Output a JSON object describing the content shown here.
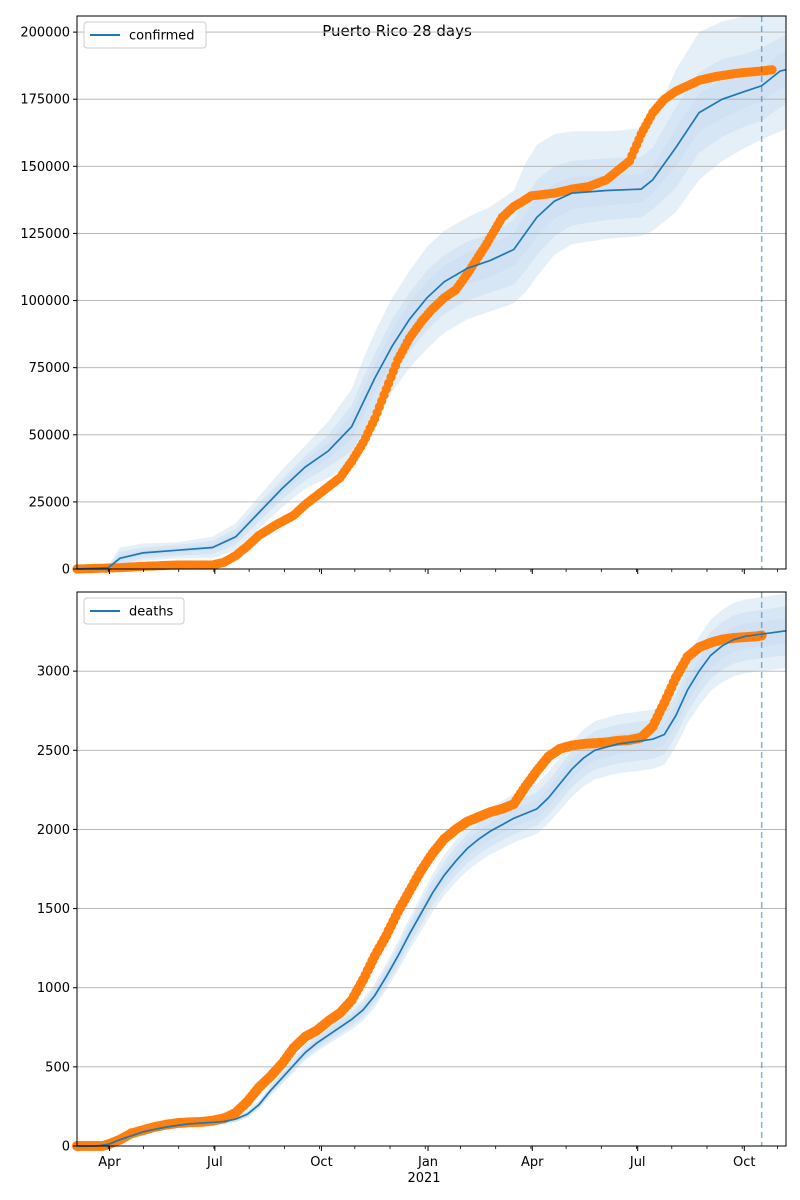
{
  "title": "Puerto Rico 28 days",
  "year_label": "2021",
  "colors": {
    "model": "#1f77b4",
    "observed": "#ff7f0e",
    "band": "#c6dbef",
    "grid": "#b0b0b0",
    "forecast_line": "#1f77b4"
  },
  "x_ticks": [
    {
      "label": "Apr",
      "day": 31
    },
    {
      "label": "Jul",
      "day": 122
    },
    {
      "label": "Oct",
      "day": 214
    },
    {
      "label": "Jan",
      "day": 306
    },
    {
      "label": "Apr",
      "day": 396
    },
    {
      "label": "Jul",
      "day": 487
    },
    {
      "label": "Oct",
      "day": 579
    }
  ],
  "chart_data": [
    {
      "type": "line",
      "name": "confirmed",
      "legend": "confirmed",
      "x_unit": "days since 2020-03-01",
      "xlim": [
        3,
        615
      ],
      "ylim": [
        0,
        206000
      ],
      "yticks": [
        0,
        25000,
        50000,
        75000,
        100000,
        125000,
        150000,
        175000,
        200000
      ],
      "forecast_start_day": 594,
      "model": {
        "x": [
          3,
          30,
          40,
          60,
          90,
          120,
          140,
          160,
          180,
          200,
          220,
          240,
          250,
          260,
          275,
          290,
          305,
          320,
          340,
          360,
          380,
          390,
          400,
          415,
          430,
          460,
          490,
          500,
          520,
          540,
          560,
          580,
          594,
          610,
          615
        ],
        "y": [
          0,
          500,
          4000,
          6000,
          7000,
          8000,
          12000,
          21000,
          30000,
          38000,
          44000,
          53000,
          62000,
          71000,
          83000,
          93000,
          101000,
          107000,
          112000,
          115000,
          119000,
          125000,
          131000,
          137000,
          140000,
          141000,
          141500,
          145000,
          157000,
          170000,
          175000,
          178000,
          180000,
          185500,
          186000
        ],
        "bands": [
          {
            "lower": [
              0,
              0,
              0,
              3000,
              4000,
              4000,
              7000,
              15000,
              23000,
              30000,
              34000,
              39000,
              46000,
              55000,
              66000,
              75000,
              82000,
              88000,
              93000,
              96000,
              99000,
              103000,
              109000,
              117000,
              121000,
              123000,
              124000,
              126000,
              133000,
              145000,
              152000,
              157000,
              160000,
              163000,
              164000
            ],
            "upper": [
              0,
              1500,
              8000,
              9500,
              10000,
              12000,
              17000,
              27000,
              37000,
              46000,
              55000,
              67000,
              78000,
              88000,
              101000,
              111000,
              120000,
              126000,
              131000,
              135000,
              141000,
              151000,
              158000,
              162000,
              163000,
              163000,
              164000,
              167000,
              186000,
              200000,
              204000,
              206000,
              206000,
              206000,
              206000
            ]
          },
          {
            "lower": [
              0,
              100,
              1500,
              4000,
              5000,
              5500,
              9000,
              17500,
              26000,
              33000,
              38000,
              44000,
              51000,
              60000,
              71000,
              81000,
              89000,
              95000,
              100000,
              103000,
              106000,
              111000,
              117000,
              124000,
              128000,
              130000,
              131000,
              134000,
              142000,
              155000,
              161000,
              165000,
              167000,
              172000,
              173000
            ],
            "upper": [
              0,
              1000,
              6500,
              8000,
              9000,
              10500,
              15000,
              24500,
              33500,
              42000,
              50000,
              61000,
              71000,
              80000,
              93000,
              103000,
              111000,
              117000,
              122000,
              125000,
              130000,
              138000,
              145000,
              150000,
              152000,
              153000,
              153500,
              157000,
              172000,
              185000,
              190000,
              192000,
              194000,
              198000,
              199000
            ]
          },
          {
            "lower": [
              0,
              300,
              2800,
              5000,
              6000,
              7000,
              10500,
              19500,
              28000,
              35500,
              41000,
              48500,
              57000,
              66000,
              77000,
              87000,
              95000,
              101000,
              106000,
              109000,
              113000,
              118000,
              124000,
              130500,
              134000,
              135500,
              136500,
              140000,
              150000,
              163000,
              168000,
              172000,
              174000,
              179000,
              179500
            ],
            "upper": [
              0,
              700,
              5200,
              7000,
              8000,
              9000,
              13500,
              22500,
              32000,
              40500,
              47000,
              57500,
              67000,
              76000,
              89000,
              99000,
              107000,
              113000,
              118000,
              121000,
              125000,
              132000,
              138000,
              143500,
              146000,
              146500,
              147000,
              150000,
              164000,
              177000,
              182000,
              184000,
              186000,
              192000,
              192500
            ]
          }
        ]
      },
      "observed": {
        "x": [
          3,
          40,
          60,
          90,
          120,
          130,
          140,
          150,
          160,
          175,
          190,
          200,
          215,
          230,
          240,
          250,
          260,
          270,
          280,
          290,
          300,
          310,
          320,
          330,
          340,
          355,
          370,
          380,
          388,
          395,
          405,
          415,
          430,
          445,
          460,
          480,
          490,
          500,
          510,
          520,
          530,
          540,
          555,
          570,
          580,
          594,
          603
        ],
        "y": [
          0,
          500,
          1000,
          1500,
          1500,
          2500,
          5000,
          8500,
          12500,
          16500,
          20000,
          24000,
          29000,
          34000,
          40000,
          47000,
          56000,
          67000,
          78000,
          86000,
          92000,
          97000,
          101000,
          104000,
          110000,
          120000,
          131000,
          135000,
          137000,
          139000,
          139500,
          140000,
          141500,
          142500,
          145000,
          152000,
          162000,
          170000,
          175000,
          178000,
          180000,
          182000,
          183500,
          184500,
          185000,
          185500,
          186000
        ]
      }
    },
    {
      "type": "line",
      "name": "deaths",
      "legend": "deaths",
      "x_unit": "days since 2020-03-01",
      "xlim": [
        3,
        615
      ],
      "ylim": [
        0,
        3500
      ],
      "yticks": [
        0,
        500,
        1000,
        1500,
        2000,
        2500,
        3000
      ],
      "forecast_start_day": 594,
      "model": {
        "x": [
          3,
          20,
          30,
          40,
          60,
          80,
          90,
          100,
          110,
          120,
          130,
          140,
          150,
          160,
          170,
          180,
          190,
          200,
          210,
          220,
          230,
          240,
          250,
          260,
          270,
          280,
          290,
          300,
          310,
          320,
          330,
          340,
          350,
          360,
          370,
          380,
          390,
          400,
          410,
          420,
          430,
          440,
          450,
          460,
          470,
          480,
          490,
          500,
          510,
          520,
          530,
          540,
          550,
          560,
          570,
          580,
          590,
          600,
          615
        ],
        "y": [
          0,
          0,
          10,
          40,
          90,
          120,
          130,
          140,
          145,
          150,
          155,
          170,
          200,
          260,
          350,
          430,
          510,
          590,
          650,
          700,
          750,
          800,
          860,
          950,
          1070,
          1200,
          1340,
          1470,
          1600,
          1710,
          1800,
          1880,
          1940,
          1990,
          2030,
          2070,
          2100,
          2130,
          2200,
          2290,
          2380,
          2450,
          2500,
          2520,
          2540,
          2550,
          2560,
          2570,
          2600,
          2720,
          2880,
          3000,
          3100,
          3160,
          3200,
          3220,
          3230,
          3240,
          3255
        ]
      },
      "observed": {
        "x": [
          3,
          25,
          30,
          40,
          50,
          60,
          70,
          80,
          90,
          100,
          110,
          120,
          130,
          140,
          150,
          160,
          170,
          180,
          190,
          200,
          210,
          220,
          230,
          240,
          250,
          260,
          270,
          280,
          290,
          300,
          310,
          320,
          330,
          340,
          350,
          360,
          370,
          380,
          390,
          400,
          410,
          420,
          430,
          440,
          450,
          460,
          470,
          480,
          490,
          500,
          510,
          520,
          530,
          540,
          550,
          560,
          570,
          580,
          590,
          594
        ],
        "y": [
          0,
          0,
          10,
          40,
          80,
          100,
          120,
          135,
          145,
          150,
          152,
          160,
          175,
          210,
          280,
          370,
          440,
          520,
          620,
          690,
          730,
          790,
          840,
          920,
          1050,
          1200,
          1330,
          1480,
          1610,
          1740,
          1850,
          1940,
          2000,
          2050,
          2080,
          2110,
          2130,
          2160,
          2270,
          2370,
          2460,
          2510,
          2530,
          2540,
          2545,
          2550,
          2560,
          2565,
          2580,
          2650,
          2800,
          2960,
          3090,
          3150,
          3180,
          3200,
          3210,
          3215,
          3220,
          3225
        ]
      }
    }
  ]
}
